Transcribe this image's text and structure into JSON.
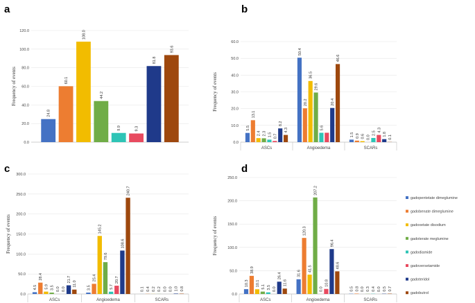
{
  "chart_data": [
    {
      "panel": "a",
      "type": "bar",
      "ylabel": "Frequency of events",
      "ylim": [
        0,
        120
      ],
      "yticks": [
        "0.0",
        "20.0",
        "40.0",
        "60.0",
        "80.0",
        "100.0",
        "120.0"
      ],
      "categories": [
        ""
      ],
      "series": [
        {
          "name": "gadopentetate dimeglumine",
          "values": [
            24.8
          ],
          "labels": [
            "24.8"
          ]
        },
        {
          "name": "gadobenate dimeglumine",
          "values": [
            60.1
          ],
          "labels": [
            "60.1"
          ]
        },
        {
          "name": "gadoxetate disodium",
          "values": [
            108.0
          ],
          "labels": [
            "108.0"
          ]
        },
        {
          "name": "gadoterate meglumine",
          "values": [
            44.2
          ],
          "labels": [
            "44.2"
          ]
        },
        {
          "name": "gadodiamide",
          "values": [
            9.9
          ],
          "labels": [
            "9.9"
          ]
        },
        {
          "name": "gadoversetamide",
          "values": [
            9.3
          ],
          "labels": [
            "9.3"
          ]
        },
        {
          "name": "gadoteridol",
          "values": [
            81.8
          ],
          "labels": [
            "81.8"
          ]
        },
        {
          "name": "gadobutrol",
          "values": [
            93.6
          ],
          "labels": [
            "93.6"
          ]
        }
      ]
    },
    {
      "panel": "b",
      "type": "bar",
      "ylabel": "Frequency of events",
      "ylim": [
        0,
        60
      ],
      "yticks": [
        "0.0",
        "10.0",
        "20.0",
        "30.0",
        "40.0",
        "50.0",
        "60.0"
      ],
      "categories": [
        "ASCs",
        "Angioedema",
        "SCARs"
      ],
      "series": [
        {
          "name": "gadopentetate dimeglumine",
          "values": [
            5.5,
            50.4,
            1.5
          ],
          "labels": [
            "5.5",
            "50.4",
            "1.5"
          ]
        },
        {
          "name": "gadobenate dimeglumine",
          "values": [
            13.1,
            20.2,
            0.9
          ],
          "labels": [
            "13.1",
            "20.2",
            "0.9"
          ]
        },
        {
          "name": "gadoxetate disodium",
          "values": [
            2.4,
            36.5,
            0.6
          ],
          "labels": [
            "2.4",
            "36.5",
            "0.6"
          ]
        },
        {
          "name": "gadoterate meglumine",
          "values": [
            2.3,
            29.6,
            0.0
          ],
          "labels": [
            "2.3",
            "29.6",
            "0.0"
          ]
        },
        {
          "name": "gadodiamide",
          "values": [
            1.5,
            5.6,
            2.5
          ],
          "labels": [
            "1.5",
            "5.6",
            "2.5"
          ]
        },
        {
          "name": "gadoversetamide",
          "values": [
            0.7,
            5.6,
            4.3
          ],
          "labels": [
            "0.7",
            "",
            "4.3"
          ]
        },
        {
          "name": "gadoteridol",
          "values": [
            8.2,
            20.4,
            1.8
          ],
          "labels": [
            "8.2",
            "20.4",
            "1.8"
          ]
        },
        {
          "name": "gadobutrol",
          "values": [
            4.3,
            46.6,
            0.1
          ],
          "labels": [
            "4.3",
            "46.6",
            "0.1"
          ]
        }
      ]
    },
    {
      "panel": "c",
      "type": "bar",
      "ylabel": "Frequency of events",
      "ylim": [
        0,
        300
      ],
      "yticks": [
        "0.0",
        "50.0",
        "100.0",
        "150.0",
        "200.0",
        "250.0",
        "300.0"
      ],
      "categories": [
        "ASCs",
        "Angioedema",
        "SCARs"
      ],
      "series": [
        {
          "name": "gadopentetate dimeglumine",
          "values": [
            4.5,
            3.5,
            0.1
          ],
          "labels": [
            "4.5",
            "3.5",
            "0.1"
          ]
        },
        {
          "name": "gadobenate dimeglumine",
          "values": [
            28.4,
            25.4,
            0.4
          ],
          "labels": [
            "28.4",
            "25.4",
            "0.4"
          ]
        },
        {
          "name": "gadoxetate disodium",
          "values": [
            5.9,
            145.2,
            0.2
          ],
          "labels": [
            "5.9",
            "145.2",
            "0.2"
          ]
        },
        {
          "name": "gadoterate meglumine",
          "values": [
            3.5,
            79.6,
            0.2
          ],
          "labels": [
            "3.5",
            "79.6",
            "0.2"
          ]
        },
        {
          "name": "gadodiamide",
          "values": [
            0.0,
            5.7,
            0.0
          ],
          "labels": [
            "0.0",
            "5.7",
            "0.0"
          ]
        },
        {
          "name": "gadoversetamide",
          "values": [
            0.0,
            20.7,
            0.0
          ],
          "labels": [
            "0.0",
            "20.7",
            "0.0"
          ]
        },
        {
          "name": "gadoteridol",
          "values": [
            21.7,
            108.6,
            1.0
          ],
          "labels": [
            "21.7",
            "108.6",
            "1.0"
          ]
        },
        {
          "name": "gadobutrol",
          "values": [
            11.0,
            240.7,
            0.8
          ],
          "labels": [
            "11.0",
            "240.7",
            "0.8"
          ]
        }
      ]
    },
    {
      "panel": "d",
      "type": "bar",
      "ylabel": "Frequency of events",
      "ylim": [
        0,
        250
      ],
      "yticks": [
        "0.0",
        "50.0",
        "100.0",
        "150.0",
        "200.0",
        "250.0"
      ],
      "categories": [
        "ASCs",
        "Angioedema",
        "SCARs"
      ],
      "series": [
        {
          "name": "gadopentetate dimeglumine",
          "values": [
            10.3,
            31.6,
            0.5
          ],
          "labels": [
            "10.3",
            "31.6",
            "0.5"
          ]
        },
        {
          "name": "gadobenate dimeglumine",
          "values": [
            38.9,
            120.3,
            0.8
          ],
          "labels": [
            "38.9",
            "120.3",
            "0.8"
          ]
        },
        {
          "name": "gadoxetate disodium",
          "values": [
            10.1,
            41.5,
            0.0
          ],
          "labels": [
            "10.1",
            "41.5",
            "0.0"
          ]
        },
        {
          "name": "gadoterate meglumine",
          "values": [
            5.1,
            207.2,
            0.3
          ],
          "labels": [
            "5.1",
            "207.2",
            "0.3"
          ]
        },
        {
          "name": "gadodiamide",
          "values": [
            3.5,
            0.0,
            0.4
          ],
          "labels": [
            "3.5",
            "0.0",
            "0.4"
          ]
        },
        {
          "name": "gadoversetamide",
          "values": [
            0.0,
            10.8,
            0.0
          ],
          "labels": [
            "0.0",
            "10.8",
            "0.0"
          ]
        },
        {
          "name": "gadoteridol",
          "values": [
            26.4,
            96.4,
            0.5
          ],
          "labels": [
            "26.4",
            "96.4",
            "0.5"
          ]
        },
        {
          "name": "gadobutrol",
          "values": [
            11.6,
            48.6,
            0.7
          ],
          "labels": [
            "11.6",
            "48.6",
            "0.7"
          ]
        }
      ]
    }
  ],
  "colors": [
    "#4472c4",
    "#ed7d31",
    "#f2bc00",
    "#70ad47",
    "#2ec4b6",
    "#e84a5f",
    "#1f3a8a",
    "#9e480e"
  ],
  "legend": {
    "items": [
      "gadopentetate dimeglumine",
      "gadobenate dimeglumine",
      "gadoxetate disodium",
      "gadoterate meglumine",
      "gadodiamide",
      "gadoversetamide",
      "gadoteridol",
      "gadobutrol"
    ]
  }
}
